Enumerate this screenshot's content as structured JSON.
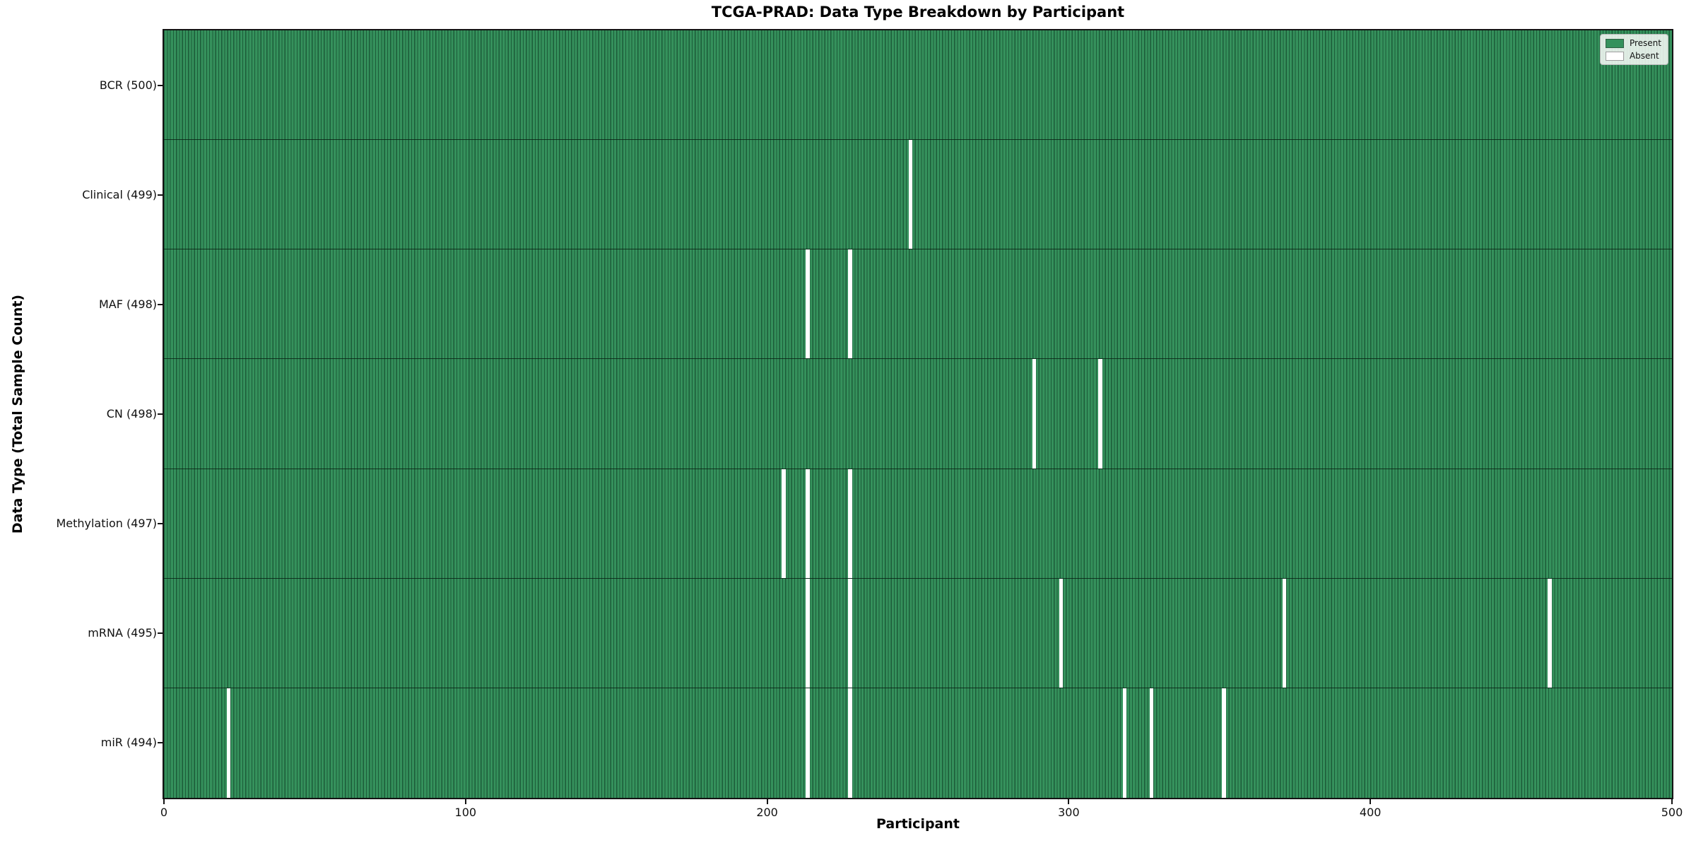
{
  "chart_data": {
    "type": "heatmap",
    "title": "TCGA-PRAD: Data Type Breakdown by Participant",
    "xlabel": "Participant",
    "ylabel": "Data Type (Total Sample Count)",
    "x_range": [
      0,
      500
    ],
    "x_ticks": [
      "0",
      "100",
      "200",
      "300",
      "400",
      "500"
    ],
    "n_participants": 500,
    "grid": false,
    "colors": {
      "present": "#35915C",
      "absent": "#FFFFFF",
      "cell_edge": "rgba(8, 48, 28, 0.55)",
      "row_divider": "rgba(8, 30, 18, 0.8)"
    },
    "legend": {
      "position": "upper right",
      "entries": [
        {
          "key": "present",
          "label": "Present",
          "color": "#35915C"
        },
        {
          "key": "absent",
          "label": "Absent",
          "color": "#FFFFFF"
        }
      ]
    },
    "rows": [
      {
        "label": "BCR (500)",
        "data_type": "BCR",
        "total": 500,
        "absent_participants": []
      },
      {
        "label": "Clinical (499)",
        "data_type": "Clinical",
        "total": 499,
        "absent_participants": [
          247
        ]
      },
      {
        "label": "MAF (498)",
        "data_type": "MAF",
        "total": 498,
        "absent_participants": [
          213,
          227
        ]
      },
      {
        "label": "CN (498)",
        "data_type": "CN",
        "total": 498,
        "absent_participants": [
          288,
          310
        ]
      },
      {
        "label": "Methylation (497)",
        "data_type": "Methylation",
        "total": 497,
        "absent_participants": [
          205,
          213,
          227
        ]
      },
      {
        "label": "mRNA (495)",
        "data_type": "mRNA",
        "total": 495,
        "absent_participants": [
          213,
          227,
          297,
          371,
          459
        ]
      },
      {
        "label": "miR (494)",
        "data_type": "miR",
        "total": 494,
        "absent_participants": [
          21,
          213,
          227,
          318,
          327,
          351
        ]
      }
    ]
  }
}
